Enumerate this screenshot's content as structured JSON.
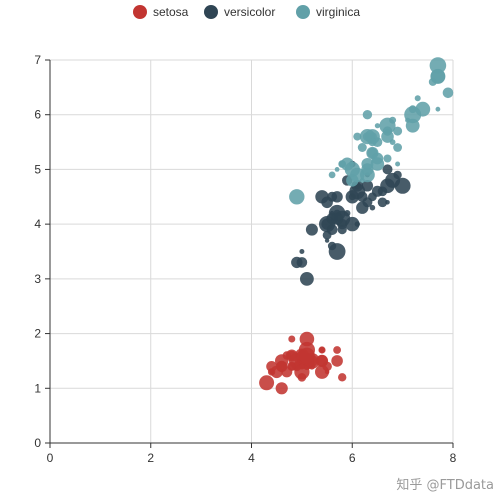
{
  "watermark": "知乎 @FTDdata",
  "chart_data": {
    "type": "scatter",
    "xlim": [
      0,
      8
    ],
    "ylim": [
      0,
      7
    ],
    "x_ticks": [
      0,
      2,
      4,
      6,
      8
    ],
    "y_ticks": [
      0,
      1,
      2,
      3,
      4,
      5,
      6,
      7
    ],
    "grid": true,
    "legend_position": "top-center",
    "size_encoding": "symbol size varies per point",
    "series": [
      {
        "name": "setosa",
        "color": "#c23531",
        "points": [
          [
            5.1,
            1.4
          ],
          [
            4.9,
            1.4
          ],
          [
            4.7,
            1.3
          ],
          [
            4.6,
            1.5
          ],
          [
            5.0,
            1.4
          ],
          [
            5.4,
            1.7
          ],
          [
            4.6,
            1.4
          ],
          [
            5.0,
            1.5
          ],
          [
            4.4,
            1.4
          ],
          [
            4.9,
            1.5
          ],
          [
            5.4,
            1.5
          ],
          [
            4.8,
            1.6
          ],
          [
            4.8,
            1.4
          ],
          [
            4.3,
            1.1
          ],
          [
            5.8,
            1.2
          ],
          [
            5.7,
            1.5
          ],
          [
            5.4,
            1.3
          ],
          [
            5.1,
            1.4
          ],
          [
            5.7,
            1.7
          ],
          [
            5.1,
            1.5
          ],
          [
            5.4,
            1.7
          ],
          [
            5.1,
            1.5
          ],
          [
            4.6,
            1.0
          ],
          [
            5.1,
            1.7
          ],
          [
            4.8,
            1.9
          ],
          [
            5.0,
            1.6
          ],
          [
            5.0,
            1.6
          ],
          [
            5.2,
            1.5
          ],
          [
            5.2,
            1.4
          ],
          [
            4.7,
            1.6
          ],
          [
            4.8,
            1.6
          ],
          [
            5.4,
            1.5
          ],
          [
            5.2,
            1.5
          ],
          [
            5.5,
            1.4
          ],
          [
            4.9,
            1.5
          ],
          [
            5.0,
            1.2
          ],
          [
            5.5,
            1.3
          ],
          [
            4.9,
            1.4
          ],
          [
            4.4,
            1.3
          ],
          [
            5.1,
            1.5
          ],
          [
            5.0,
            1.3
          ],
          [
            4.5,
            1.3
          ],
          [
            4.4,
            1.3
          ],
          [
            5.0,
            1.6
          ],
          [
            5.1,
            1.9
          ],
          [
            4.8,
            1.4
          ],
          [
            5.1,
            1.6
          ],
          [
            4.6,
            1.4
          ],
          [
            5.3,
            1.5
          ],
          [
            5.0,
            1.4
          ]
        ]
      },
      {
        "name": "versicolor",
        "color": "#2f4554",
        "points": [
          [
            7.0,
            4.7
          ],
          [
            6.4,
            4.5
          ],
          [
            6.9,
            4.9
          ],
          [
            5.5,
            4.0
          ],
          [
            6.5,
            4.6
          ],
          [
            5.7,
            4.5
          ],
          [
            6.3,
            4.7
          ],
          [
            4.9,
            3.3
          ],
          [
            6.6,
            4.6
          ],
          [
            5.2,
            3.9
          ],
          [
            5.0,
            3.5
          ],
          [
            5.9,
            4.2
          ],
          [
            6.0,
            4.0
          ],
          [
            6.1,
            4.7
          ],
          [
            5.6,
            3.6
          ],
          [
            6.7,
            4.4
          ],
          [
            5.6,
            4.5
          ],
          [
            5.8,
            4.1
          ],
          [
            6.2,
            4.5
          ],
          [
            5.6,
            3.9
          ],
          [
            5.9,
            4.8
          ],
          [
            6.1,
            4.0
          ],
          [
            6.3,
            4.9
          ],
          [
            6.1,
            4.7
          ],
          [
            6.4,
            4.3
          ],
          [
            6.6,
            4.4
          ],
          [
            6.8,
            4.8
          ],
          [
            6.7,
            5.0
          ],
          [
            6.0,
            4.5
          ],
          [
            5.7,
            3.5
          ],
          [
            5.5,
            3.8
          ],
          [
            5.5,
            3.7
          ],
          [
            5.8,
            3.9
          ],
          [
            6.0,
            5.1
          ],
          [
            5.4,
            4.5
          ],
          [
            6.0,
            4.5
          ],
          [
            6.7,
            4.7
          ],
          [
            6.3,
            4.4
          ],
          [
            5.6,
            4.1
          ],
          [
            5.5,
            4.0
          ],
          [
            5.5,
            4.4
          ],
          [
            6.1,
            4.6
          ],
          [
            5.8,
            4.0
          ],
          [
            5.0,
            3.3
          ],
          [
            5.6,
            4.2
          ],
          [
            5.7,
            4.2
          ],
          [
            5.7,
            4.2
          ],
          [
            6.2,
            4.3
          ],
          [
            5.1,
            3.0
          ],
          [
            5.7,
            4.1
          ]
        ]
      },
      {
        "name": "virginica",
        "color": "#61a0a8",
        "points": [
          [
            6.3,
            6.0
          ],
          [
            5.8,
            5.1
          ],
          [
            7.1,
            5.9
          ],
          [
            6.3,
            5.6
          ],
          [
            6.5,
            5.8
          ],
          [
            7.6,
            6.6
          ],
          [
            4.9,
            4.5
          ],
          [
            7.3,
            6.3
          ],
          [
            6.7,
            5.8
          ],
          [
            7.2,
            6.1
          ],
          [
            6.5,
            5.1
          ],
          [
            6.4,
            5.3
          ],
          [
            6.8,
            5.5
          ],
          [
            5.7,
            5.0
          ],
          [
            5.8,
            5.1
          ],
          [
            6.4,
            5.3
          ],
          [
            6.5,
            5.5
          ],
          [
            7.7,
            6.7
          ],
          [
            7.7,
            6.9
          ],
          [
            6.0,
            5.0
          ],
          [
            6.9,
            5.7
          ],
          [
            5.6,
            4.9
          ],
          [
            7.7,
            6.7
          ],
          [
            6.3,
            4.9
          ],
          [
            6.7,
            5.7
          ],
          [
            7.2,
            6.0
          ],
          [
            6.2,
            4.8
          ],
          [
            6.1,
            4.9
          ],
          [
            6.4,
            5.6
          ],
          [
            7.2,
            5.8
          ],
          [
            7.4,
            6.1
          ],
          [
            7.9,
            6.4
          ],
          [
            6.4,
            5.6
          ],
          [
            6.3,
            5.1
          ],
          [
            6.1,
            5.6
          ],
          [
            7.7,
            6.1
          ],
          [
            6.3,
            5.6
          ],
          [
            6.4,
            5.5
          ],
          [
            6.0,
            4.8
          ],
          [
            6.9,
            5.4
          ],
          [
            6.7,
            5.6
          ],
          [
            6.9,
            5.1
          ],
          [
            5.8,
            5.1
          ],
          [
            6.8,
            5.9
          ],
          [
            6.7,
            5.7
          ],
          [
            6.7,
            5.2
          ],
          [
            6.3,
            5.0
          ],
          [
            6.5,
            5.2
          ],
          [
            6.2,
            5.4
          ],
          [
            5.9,
            5.1
          ]
        ]
      }
    ]
  }
}
